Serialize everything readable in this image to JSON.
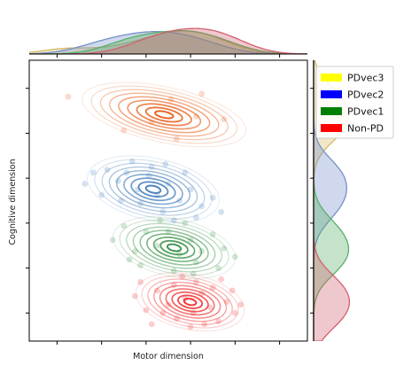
{
  "chart_data": {
    "type": "scatter",
    "title": "",
    "xlabel": "Motor dimension",
    "ylabel": "Cognitive dimension",
    "xlim": [
      0,
      10
    ],
    "ylim": [
      0,
      10
    ],
    "grid": false,
    "legend_position": "top-right, outside plot",
    "series": [
      {
        "name": "PDvec3",
        "legend_color": "#ffff00",
        "color": "#e6550d",
        "marginal_color": "#d4b96a",
        "points": [
          [
            5.1,
            8.6
          ],
          [
            6.0,
            8.0
          ],
          [
            4.4,
            7.8
          ],
          [
            7.0,
            7.9
          ],
          [
            5.3,
            7.2
          ],
          [
            3.4,
            7.5
          ],
          [
            6.2,
            8.8
          ],
          [
            1.4,
            8.7
          ]
        ]
      },
      {
        "name": "PDvec2",
        "legend_color": "#0000ff",
        "color": "#3a78b8",
        "marginal_color": "#7590c8",
        "points": [
          [
            2.0,
            5.6
          ],
          [
            2.3,
            6.0
          ],
          [
            2.8,
            6.1
          ],
          [
            3.2,
            5.7
          ],
          [
            3.5,
            6.0
          ],
          [
            3.9,
            5.4
          ],
          [
            4.3,
            5.9
          ],
          [
            4.6,
            5.2
          ],
          [
            5.0,
            5.6
          ],
          [
            5.4,
            5.0
          ],
          [
            5.8,
            5.4
          ],
          [
            6.2,
            4.8
          ],
          [
            4.0,
            4.9
          ],
          [
            4.8,
            4.6
          ],
          [
            6.6,
            5.1
          ],
          [
            5.6,
            6.0
          ],
          [
            3.3,
            5.0
          ],
          [
            4.4,
            6.2
          ],
          [
            2.6,
            5.2
          ],
          [
            5.2,
            4.3
          ],
          [
            6.0,
            4.4
          ],
          [
            3.7,
            6.4
          ],
          [
            4.9,
            6.3
          ],
          [
            6.9,
            4.6
          ]
        ]
      },
      {
        "name": "PDvec1",
        "legend_color": "#008000",
        "color": "#2e8b3c",
        "marginal_color": "#58b068",
        "points": [
          [
            3.0,
            3.6
          ],
          [
            3.4,
            4.1
          ],
          [
            3.8,
            3.2
          ],
          [
            4.2,
            3.9
          ],
          [
            4.6,
            3.4
          ],
          [
            5.0,
            3.9
          ],
          [
            5.4,
            3.1
          ],
          [
            5.8,
            3.6
          ],
          [
            6.2,
            3.2
          ],
          [
            6.6,
            3.8
          ],
          [
            7.0,
            3.3
          ],
          [
            4.0,
            2.7
          ],
          [
            5.2,
            2.5
          ],
          [
            6.0,
            2.8
          ],
          [
            6.8,
            2.6
          ],
          [
            4.7,
            4.3
          ],
          [
            5.6,
            4.2
          ],
          [
            3.6,
            2.9
          ],
          [
            7.4,
            3.0
          ],
          [
            5.9,
            2.4
          ]
        ]
      },
      {
        "name": "Non-PD",
        "legend_color": "#ff0000",
        "color": "#ee2222",
        "marginal_color": "#d06070",
        "points": [
          [
            3.8,
            1.6
          ],
          [
            4.2,
            1.1
          ],
          [
            4.6,
            1.8
          ],
          [
            5.0,
            1.3
          ],
          [
            5.3,
            0.8
          ],
          [
            5.6,
            1.5
          ],
          [
            5.9,
            1.0
          ],
          [
            6.2,
            1.7
          ],
          [
            6.5,
            1.2
          ],
          [
            6.8,
            0.7
          ],
          [
            7.1,
            1.4
          ],
          [
            7.4,
            1.0
          ],
          [
            4.4,
            0.6
          ],
          [
            5.2,
            2.0
          ],
          [
            6.0,
            2.1
          ],
          [
            6.6,
            1.9
          ],
          [
            7.3,
            1.8
          ],
          [
            4.0,
            2.1
          ],
          [
            5.8,
            0.5
          ],
          [
            6.9,
            2.2
          ],
          [
            7.6,
            1.3
          ],
          [
            4.8,
            1.0
          ],
          [
            6.3,
            0.6
          ],
          [
            5.5,
            2.3
          ]
        ]
      }
    ]
  }
}
